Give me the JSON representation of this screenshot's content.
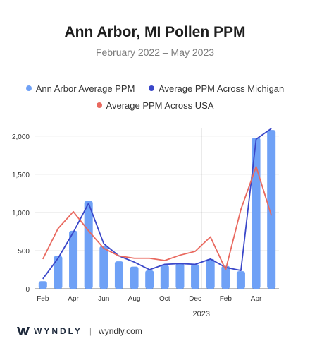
{
  "header": {
    "title": "Ann Arbor, MI Pollen PPM",
    "subtitle": "February 2022 – May 2023"
  },
  "legend": {
    "items": [
      {
        "label": "Ann Arbor Average PPM",
        "color": "#6fa1f6"
      },
      {
        "label": "Average PPM Across Michigan",
        "color": "#3a47c9"
      },
      {
        "label": "Average PPM Across USA",
        "color": "#e9695f"
      }
    ]
  },
  "footer": {
    "brand": "WYNDLY",
    "site": "wyndly.com"
  },
  "chart_data": {
    "type": "bar",
    "categories": [
      "Feb",
      "Mar",
      "Apr",
      "May",
      "Jun",
      "Jul",
      "Aug",
      "Sep",
      "Oct",
      "Nov",
      "Dec",
      "Jan",
      "Feb",
      "Mar",
      "Apr",
      "May"
    ],
    "x_tick_labels": [
      "Feb",
      "",
      "Apr",
      "",
      "Jun",
      "",
      "Aug",
      "",
      "Oct",
      "",
      "Dec",
      "",
      "Feb",
      "",
      "Apr",
      ""
    ],
    "year_marker": {
      "label": "2023",
      "before_index": 11
    },
    "ylim": [
      0,
      2100
    ],
    "yticks": [
      0,
      500,
      1000,
      1500,
      2000
    ],
    "ytick_labels": [
      "0",
      "500",
      "1,000",
      "1,500",
      "2,000"
    ],
    "series": [
      {
        "name": "Ann Arbor Average PPM",
        "kind": "bar",
        "color": "#6fa1f6",
        "values": [
          100,
          430,
          760,
          1150,
          560,
          360,
          290,
          240,
          310,
          330,
          320,
          390,
          300,
          230,
          1980,
          2080
        ]
      },
      {
        "name": "Average PPM Across Michigan",
        "kind": "line",
        "color": "#3a47c9",
        "values": [
          130,
          400,
          740,
          1120,
          590,
          430,
          350,
          250,
          320,
          330,
          320,
          390,
          280,
          240,
          1960,
          2100
        ]
      },
      {
        "name": "Average PPM Across USA",
        "kind": "line",
        "color": "#e9695f",
        "values": [
          390,
          790,
          1010,
          760,
          530,
          430,
          400,
          400,
          370,
          440,
          490,
          680,
          250,
          1040,
          1600,
          960
        ]
      }
    ]
  }
}
